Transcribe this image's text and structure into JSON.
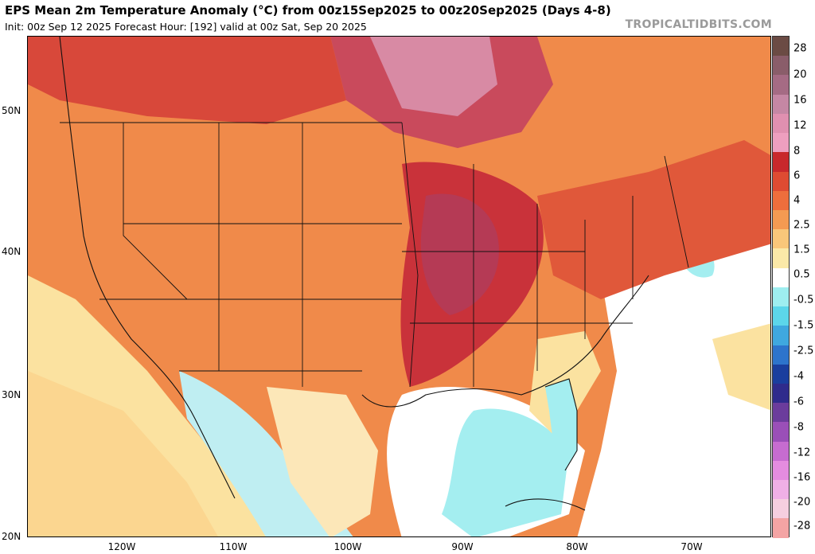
{
  "header": {
    "title": "EPS Mean 2m Temperature Anomaly (°C) from 00z15Sep2025 to 00z20Sep2025 (Days 4-8)",
    "subtitle": "Init: 00z Sep 12 2025   Forecast Hour: [192]   valid at 00z Sat, Sep 20 2025",
    "brand": "TROPICALTIDBITS.COM"
  },
  "map": {
    "lat_labels": [
      "50N",
      "40N",
      "30N",
      "20N"
    ],
    "lon_labels": [
      "120W",
      "110W",
      "100W",
      "90W",
      "80W",
      "70W"
    ]
  },
  "colorbar": {
    "labels": [
      "28",
      "20",
      "16",
      "12",
      "8",
      "6",
      "4",
      "2.5",
      "1.5",
      "0.5",
      "-0.5",
      "-1.5",
      "-2.5",
      "-4",
      "-6",
      "-8",
      "-12",
      "-16",
      "-20",
      "-28"
    ],
    "colors": [
      "#6b4b44",
      "#8a5d6a",
      "#a56b84",
      "#c587a4",
      "#e090b0",
      "#ee9fbf",
      "#c8282c",
      "#de4b32",
      "#ee6e3c",
      "#f49a52",
      "#f9c77a",
      "#fbe9a8",
      "#ffffff",
      "#9eeef0",
      "#5cd6ea",
      "#3fa8df",
      "#2d74cc",
      "#1a3e9e",
      "#2f2b8c",
      "#6b3c9c",
      "#9a4fb8",
      "#c66cd0",
      "#e48ce0",
      "#f0b0e6",
      "#f6cfe0",
      "#f4a4a4"
    ]
  }
}
